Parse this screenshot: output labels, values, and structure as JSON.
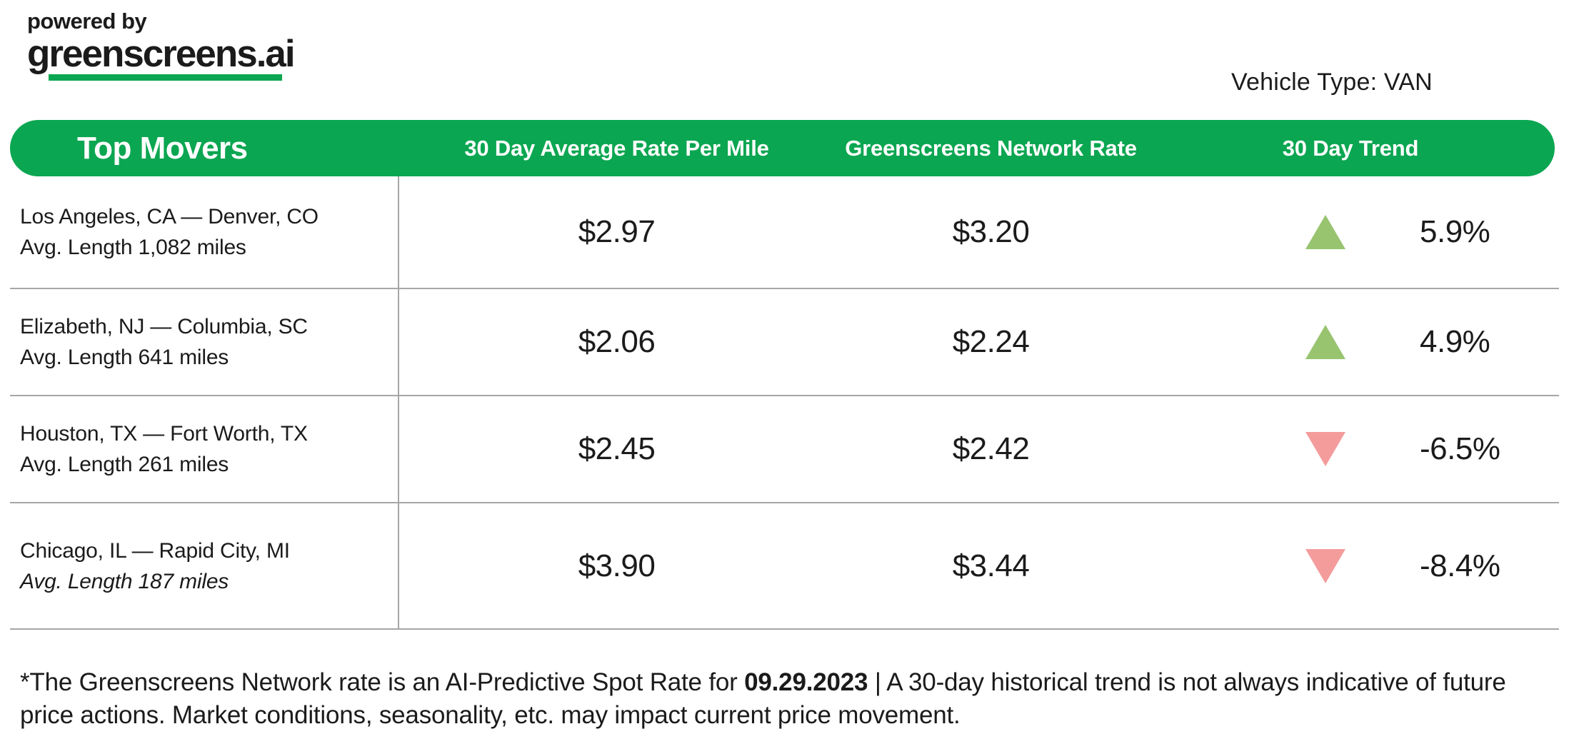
{
  "logo": {
    "powered_by": "powered by",
    "brand": "greenscreens.ai"
  },
  "vehicle_type": "Vehicle Type: VAN",
  "table": {
    "title": "Top Movers",
    "columns": [
      "30 Day Average Rate Per Mile",
      "Greenscreens Network Rate",
      "30 Day Trend"
    ],
    "rows": [
      {
        "route": "Los Angeles, CA — Denver, CO",
        "avg_length": "Avg. Length 1,082 miles",
        "avg_rate": "$2.97",
        "network_rate": "$3.20",
        "trend_direction": "up",
        "trend_value": "5.9%",
        "length_italic": false
      },
      {
        "route": "Elizabeth, NJ — Columbia, SC",
        "avg_length": "Avg. Length 641 miles",
        "avg_rate": "$2.06",
        "network_rate": "$2.24",
        "trend_direction": "up",
        "trend_value": "4.9%",
        "length_italic": false
      },
      {
        "route": "Houston, TX — Fort Worth, TX",
        "avg_length": "Avg. Length 261 miles",
        "avg_rate": "$2.45",
        "network_rate": "$2.42",
        "trend_direction": "down",
        "trend_value": "-6.5%",
        "length_italic": false
      },
      {
        "route": "Chicago, IL — Rapid City, MI",
        "avg_length": "Avg. Length 187 miles",
        "avg_rate": "$3.90",
        "network_rate": "$3.44",
        "trend_direction": "down",
        "trend_value": "-8.4%",
        "length_italic": true
      }
    ]
  },
  "footer": {
    "prefix": "*The Greenscreens Network rate is an AI-Predictive Spot Rate for ",
    "date": "09.29.2023",
    "suffix": " | A 30-day historical trend is not always indicative of future price actions. Market conditions, seasonality, etc. may impact current price movement."
  },
  "colors": {
    "brand_green": "#0BA651",
    "trend_up_green": "#98C470",
    "trend_down_red": "#F49C9C",
    "divider_gray": "#A6A6A6"
  }
}
